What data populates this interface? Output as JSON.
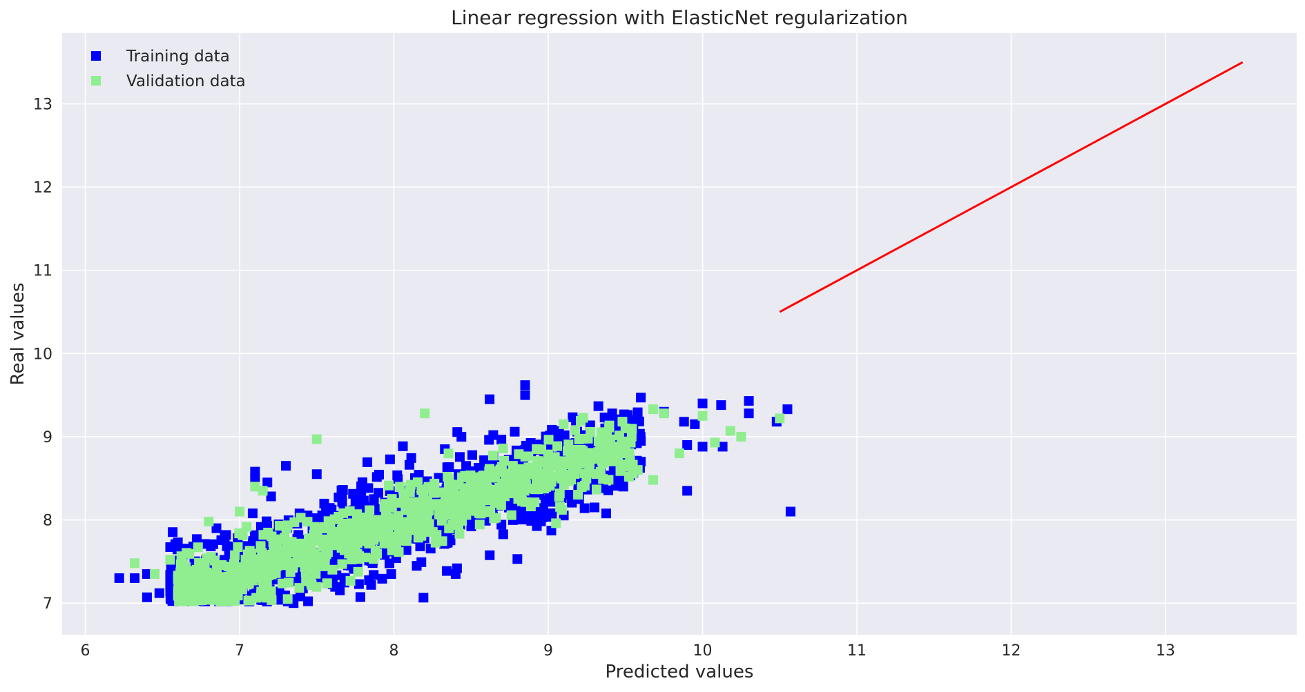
{
  "chart_data": {
    "type": "scatter",
    "title": "Linear regression with ElasticNet regularization",
    "xlabel": "Predicted values",
    "ylabel": "Real values",
    "xlim": [
      5.85,
      13.85
    ],
    "ylim": [
      6.62,
      13.85
    ],
    "x_ticks": [
      6,
      7,
      8,
      9,
      10,
      11,
      12,
      13
    ],
    "y_ticks": [
      7,
      8,
      9,
      10,
      11,
      12,
      13
    ],
    "grid": true,
    "legend_position": "top-left",
    "background_color": "#EAEAF2",
    "legend": [
      {
        "label": "Training data",
        "color": "#0000FF",
        "marker": "square"
      },
      {
        "label": "Validation data",
        "color": "#90EE90",
        "marker": "square"
      }
    ],
    "series": [
      {
        "name": "Training data",
        "color": "#0000FF",
        "marker": "square",
        "cluster": {
          "x_range": [
            6.55,
            9.6
          ],
          "slope": 0.62,
          "intercept": 3.0,
          "spread": 0.28,
          "count": 1300
        },
        "points": [
          [
            6.22,
            7.3
          ],
          [
            6.32,
            7.3
          ],
          [
            6.4,
            7.35
          ],
          [
            6.4,
            7.07
          ],
          [
            6.48,
            7.12
          ],
          [
            6.55,
            7.2
          ],
          [
            6.6,
            7.73
          ],
          [
            6.7,
            7.68
          ],
          [
            6.78,
            7.5
          ],
          [
            6.85,
            7.9
          ],
          [
            6.9,
            7.03
          ],
          [
            6.95,
            7.05
          ],
          [
            7.1,
            8.58
          ],
          [
            7.1,
            8.5
          ],
          [
            7.18,
            8.45
          ],
          [
            7.3,
            8.65
          ],
          [
            7.35,
            7.0
          ],
          [
            7.5,
            8.55
          ],
          [
            8.62,
            9.45
          ],
          [
            8.85,
            9.62
          ],
          [
            8.85,
            9.5
          ],
          [
            8.8,
            7.53
          ],
          [
            8.2,
            7.9
          ],
          [
            8.4,
            7.35
          ],
          [
            9.3,
            8.15
          ],
          [
            9.2,
            8.25
          ],
          [
            9.6,
            9.47
          ],
          [
            9.75,
            9.3
          ],
          [
            10.0,
            9.4
          ],
          [
            10.12,
            9.38
          ],
          [
            10.3,
            9.43
          ],
          [
            10.3,
            9.28
          ],
          [
            10.48,
            9.18
          ],
          [
            10.55,
            9.33
          ],
          [
            10.57,
            8.1
          ],
          [
            9.9,
            8.35
          ],
          [
            9.9,
            8.9
          ],
          [
            10.0,
            8.88
          ],
          [
            10.13,
            8.88
          ],
          [
            9.88,
            9.18
          ],
          [
            9.6,
            8.95
          ],
          [
            9.5,
            8.75
          ],
          [
            9.45,
            8.5
          ],
          [
            9.6,
            8.7
          ],
          [
            9.95,
            9.15
          ],
          [
            9.05,
            8.4
          ],
          [
            8.95,
            8.5
          ],
          [
            9.15,
            8.55
          ]
        ]
      },
      {
        "name": "Validation data",
        "color": "#90EE90",
        "marker": "square",
        "cluster": {
          "x_range": [
            6.6,
            9.55
          ],
          "slope": 0.62,
          "intercept": 3.0,
          "spread": 0.2,
          "count": 900
        },
        "points": [
          [
            6.32,
            7.48
          ],
          [
            6.45,
            7.35
          ],
          [
            6.55,
            7.52
          ],
          [
            6.8,
            7.98
          ],
          [
            7.0,
            8.1
          ],
          [
            7.5,
            8.97
          ],
          [
            8.2,
            9.28
          ],
          [
            9.05,
            7.96
          ],
          [
            9.58,
            8.6
          ],
          [
            9.68,
            8.48
          ],
          [
            9.68,
            9.33
          ],
          [
            9.75,
            9.28
          ],
          [
            9.85,
            8.8
          ],
          [
            10.0,
            9.25
          ],
          [
            10.08,
            8.93
          ],
          [
            10.18,
            9.07
          ],
          [
            10.25,
            9.0
          ],
          [
            10.5,
            9.22
          ],
          [
            9.38,
            9.05
          ],
          [
            9.5,
            9.1
          ],
          [
            9.1,
            9.15
          ],
          [
            7.1,
            8.4
          ],
          [
            7.15,
            8.35
          ]
        ]
      }
    ],
    "lines": [
      {
        "name": "",
        "color": "#FF0000",
        "x": [
          10.5,
          13.5
        ],
        "y": [
          10.5,
          13.5
        ]
      }
    ]
  }
}
